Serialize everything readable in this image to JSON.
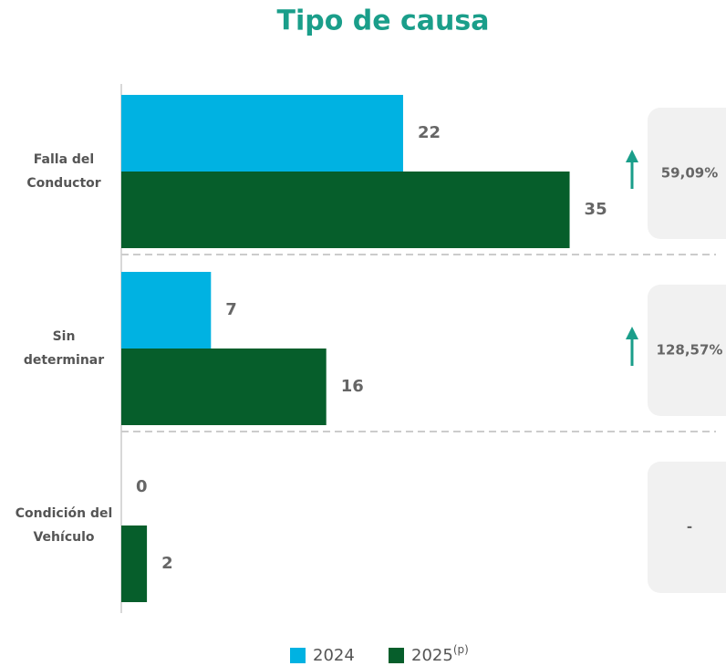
{
  "chart_data": {
    "type": "bar",
    "orientation": "horizontal",
    "title": "Tipo de causa",
    "categories": [
      "Falla del Conductor",
      "Sin determinar",
      "Condición del Vehículo"
    ],
    "series": [
      {
        "name": "2024",
        "color": "#00b2e2",
        "values": [
          22,
          7,
          0
        ]
      },
      {
        "name": "2025",
        "name_superscript": "(p)",
        "color": "#065e2b",
        "values": [
          35,
          16,
          2
        ]
      }
    ],
    "xlim": [
      0,
      45
    ],
    "changes": [
      59.09,
      128.57,
      null
    ],
    "change_labels": [
      "59,09%",
      "128,57%",
      "-"
    ],
    "change_color": "#1a9e8a"
  }
}
